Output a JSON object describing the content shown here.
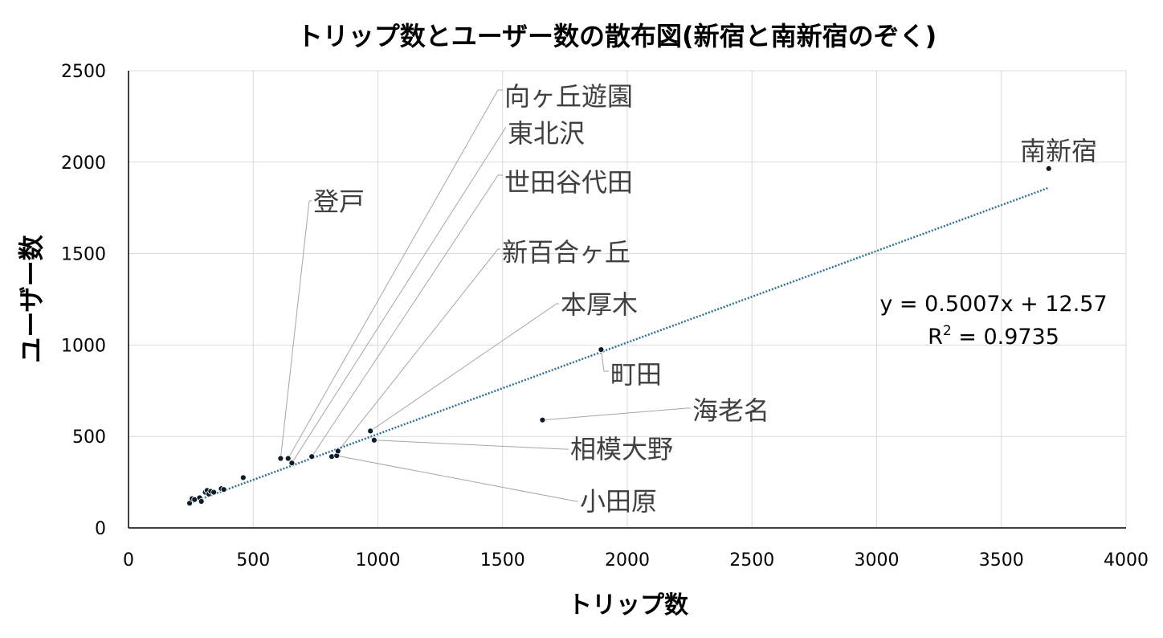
{
  "chart_data": {
    "type": "scatter",
    "title": "トリップ数とユーザー数の散布図(新宿と南新宿のぞく)",
    "xlabel": "トリップ数",
    "ylabel": "ユーザー数",
    "xlim": [
      0,
      4000
    ],
    "ylim": [
      0,
      2500
    ],
    "xticks": [
      0,
      500,
      1000,
      1500,
      2000,
      2500,
      3000,
      3500,
      4000
    ],
    "yticks": [
      0,
      500,
      1000,
      1500,
      2000,
      2500
    ],
    "grid": true,
    "legend": "none",
    "trendline": {
      "type": "linear",
      "slope": 0.5007,
      "intercept": 12.57,
      "x_range": [
        245,
        3690
      ],
      "equation": "y = 0.5007x + 12.57",
      "r2_prefix": "R",
      "r2_sup": "2",
      "r2_suffix": " = 0.9735"
    },
    "points": [
      {
        "x": 245,
        "y": 135
      },
      {
        "x": 255,
        "y": 160
      },
      {
        "x": 265,
        "y": 155
      },
      {
        "x": 285,
        "y": 165
      },
      {
        "x": 292,
        "y": 145
      },
      {
        "x": 308,
        "y": 195
      },
      {
        "x": 315,
        "y": 205
      },
      {
        "x": 322,
        "y": 185
      },
      {
        "x": 330,
        "y": 200
      },
      {
        "x": 342,
        "y": 195
      },
      {
        "x": 372,
        "y": 215
      },
      {
        "x": 382,
        "y": 210
      },
      {
        "x": 460,
        "y": 275
      },
      {
        "x": 610,
        "y": 380
      },
      {
        "x": 640,
        "y": 380
      },
      {
        "x": 655,
        "y": 355
      },
      {
        "x": 735,
        "y": 390
      },
      {
        "x": 815,
        "y": 390
      },
      {
        "x": 835,
        "y": 395
      },
      {
        "x": 840,
        "y": 420
      },
      {
        "x": 970,
        "y": 530
      },
      {
        "x": 985,
        "y": 480
      },
      {
        "x": 1660,
        "y": 590
      },
      {
        "x": 1895,
        "y": 975
      },
      {
        "x": 3690,
        "y": 1965
      }
    ],
    "annotations": [
      {
        "label": "向ヶ丘遊園",
        "x": 640,
        "y": 380
      },
      {
        "label": "東北沢",
        "x": 655,
        "y": 355
      },
      {
        "label": "世田谷代田",
        "x": 735,
        "y": 390
      },
      {
        "label": "登戸",
        "x": 610,
        "y": 380
      },
      {
        "label": "新百合ヶ丘",
        "x": 840,
        "y": 420
      },
      {
        "label": "本厚木",
        "x": 970,
        "y": 530
      },
      {
        "label": "南新宿",
        "x": 3690,
        "y": 1965
      },
      {
        "label": "町田",
        "x": 1895,
        "y": 975
      },
      {
        "label": "海老名",
        "x": 1660,
        "y": 590
      },
      {
        "label": "相模大野",
        "x": 985,
        "y": 480
      },
      {
        "label": "小田原",
        "x": 835,
        "y": 395
      }
    ],
    "colors": {
      "marker": "#0d1b2a",
      "trendline": "#2e6f96",
      "grid": "#d9d9d9",
      "axis": "#000000",
      "leader": "#a6a6a6",
      "annotation_text": "#404040"
    }
  }
}
